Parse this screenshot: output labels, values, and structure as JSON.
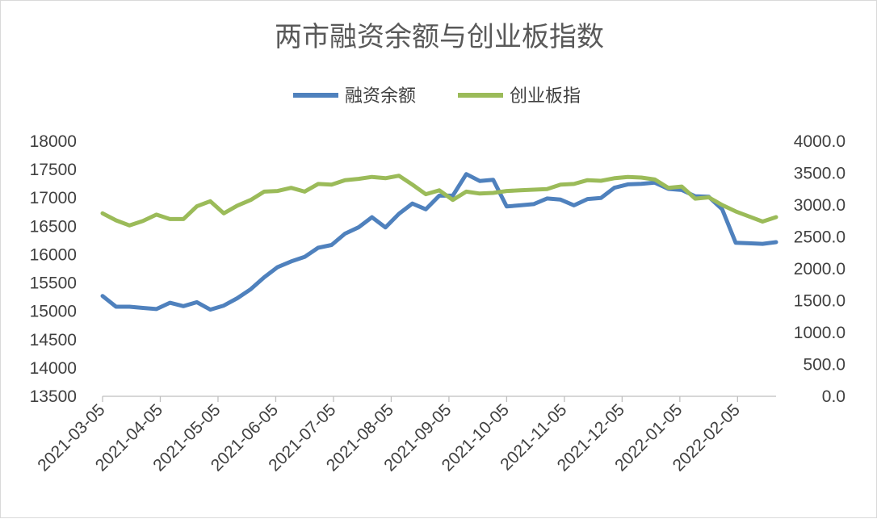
{
  "chart_data": {
    "type": "line",
    "title": "两市融资余额与创业板指数",
    "legend_position": "top-center",
    "grid": false,
    "x_tick_labels": [
      "2021-03-05",
      "2021-04-05",
      "2021-05-05",
      "2021-06-05",
      "2021-07-05",
      "2021-08-05",
      "2021-09-05",
      "2021-10-05",
      "2021-11-05",
      "2021-12-05",
      "2022-01-05",
      "2022-02-05"
    ],
    "x_range_days": [
      0,
      350
    ],
    "left_axis": {
      "ylim": [
        13500,
        18000
      ],
      "ticks": [
        "18000",
        "17500",
        "17000",
        "16500",
        "16000",
        "15500",
        "15000",
        "14500",
        "14000",
        "13500"
      ],
      "tick_values": [
        18000,
        17500,
        17000,
        16500,
        16000,
        15500,
        15000,
        14500,
        14000,
        13500
      ]
    },
    "right_axis": {
      "ylim": [
        0,
        4000
      ],
      "ticks": [
        "4000.0",
        "3500.0",
        "3000.0",
        "2500.0",
        "2000.0",
        "1500.0",
        "1000.0",
        "500.0",
        "0.0"
      ],
      "tick_values": [
        4000,
        3500,
        3000,
        2500,
        2000,
        1500,
        1000,
        500,
        0
      ]
    },
    "series": [
      {
        "name": "融资余额",
        "axis": "left",
        "color": "#4f81bd",
        "x": [
          0,
          7,
          14,
          21,
          28,
          35,
          42,
          49,
          56,
          63,
          70,
          77,
          84,
          91,
          98,
          105,
          112,
          119,
          126,
          133,
          140,
          147,
          154,
          161,
          168,
          175,
          182,
          189,
          196,
          203,
          210,
          217,
          224,
          231,
          238,
          245,
          252,
          259,
          266,
          273,
          280,
          287,
          294,
          301,
          308,
          315,
          322,
          329,
          336,
          343,
          350
        ],
        "values": [
          15270,
          15080,
          15080,
          15060,
          15040,
          15150,
          15090,
          15160,
          15030,
          15100,
          15230,
          15390,
          15600,
          15780,
          15880,
          15960,
          16120,
          16170,
          16370,
          16480,
          16660,
          16480,
          16720,
          16900,
          16800,
          17040,
          17040,
          17420,
          17300,
          17320,
          16850,
          16870,
          16890,
          16990,
          16970,
          16870,
          16980,
          17000,
          17180,
          17240,
          17250,
          17270,
          17160,
          17140,
          17030,
          17020,
          16800,
          16210,
          16200,
          16190,
          16220
        ]
      },
      {
        "name": "创业板指",
        "axis": "right",
        "color": "#9bbb59",
        "x": [
          0,
          7,
          14,
          21,
          28,
          35,
          42,
          49,
          56,
          63,
          70,
          77,
          84,
          91,
          98,
          105,
          112,
          119,
          126,
          133,
          140,
          147,
          154,
          161,
          168,
          175,
          182,
          189,
          196,
          203,
          210,
          217,
          224,
          231,
          238,
          245,
          252,
          259,
          266,
          273,
          280,
          287,
          294,
          301,
          308,
          315,
          322,
          329,
          336,
          343,
          350
        ],
        "values": [
          2870,
          2760,
          2680,
          2750,
          2850,
          2780,
          2780,
          2980,
          3060,
          2870,
          2990,
          3080,
          3210,
          3220,
          3270,
          3210,
          3330,
          3320,
          3390,
          3410,
          3440,
          3420,
          3460,
          3320,
          3170,
          3230,
          3080,
          3210,
          3180,
          3190,
          3220,
          3230,
          3240,
          3250,
          3320,
          3330,
          3390,
          3380,
          3420,
          3440,
          3430,
          3400,
          3270,
          3290,
          3100,
          3120,
          3000,
          2900,
          2820,
          2740,
          2810
        ]
      }
    ]
  }
}
